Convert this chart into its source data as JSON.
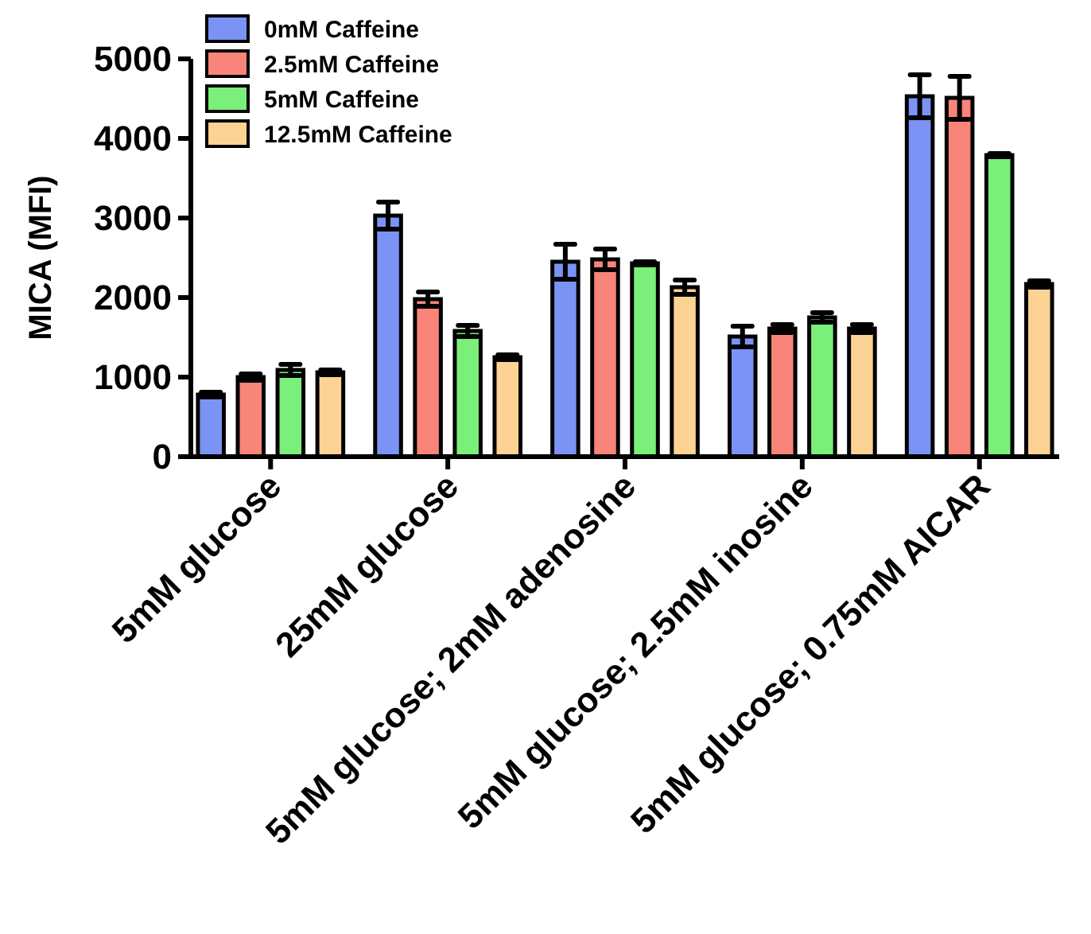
{
  "chart_data": {
    "type": "bar",
    "ylabel": "MICA (MFI)",
    "categories": [
      "5mM glucose",
      "25mM glucose",
      "5mM glucose; 2mM adenosine",
      "5mM glucose; 2.5mM inosine",
      "5mM glucose; 0.75mM AICAR"
    ],
    "series": [
      {
        "name": "0mM Caffeine",
        "color": "#7b93f5",
        "values": [
          780,
          3030,
          2450,
          1510,
          4530
        ],
        "errors": [
          30,
          170,
          220,
          130,
          270
        ]
      },
      {
        "name": "2.5mM Caffeine",
        "color": "#f98479",
        "values": [
          1000,
          1980,
          2480,
          1610,
          4510
        ],
        "errors": [
          40,
          90,
          130,
          50,
          270
        ]
      },
      {
        "name": "5mM Caffeine",
        "color": "#7af07a",
        "values": [
          1090,
          1580,
          2430,
          1750,
          3790
        ],
        "errors": [
          70,
          70,
          20,
          60,
          20
        ]
      },
      {
        "name": "12.5mM Caffeine",
        "color": "#fdd395",
        "values": [
          1060,
          1250,
          2130,
          1610,
          2170
        ],
        "errors": [
          30,
          30,
          90,
          50,
          40
        ]
      }
    ],
    "ylim": [
      0,
      5000
    ],
    "yticks": [
      0,
      1000,
      2000,
      3000,
      4000,
      5000
    ],
    "legend": "top left"
  }
}
